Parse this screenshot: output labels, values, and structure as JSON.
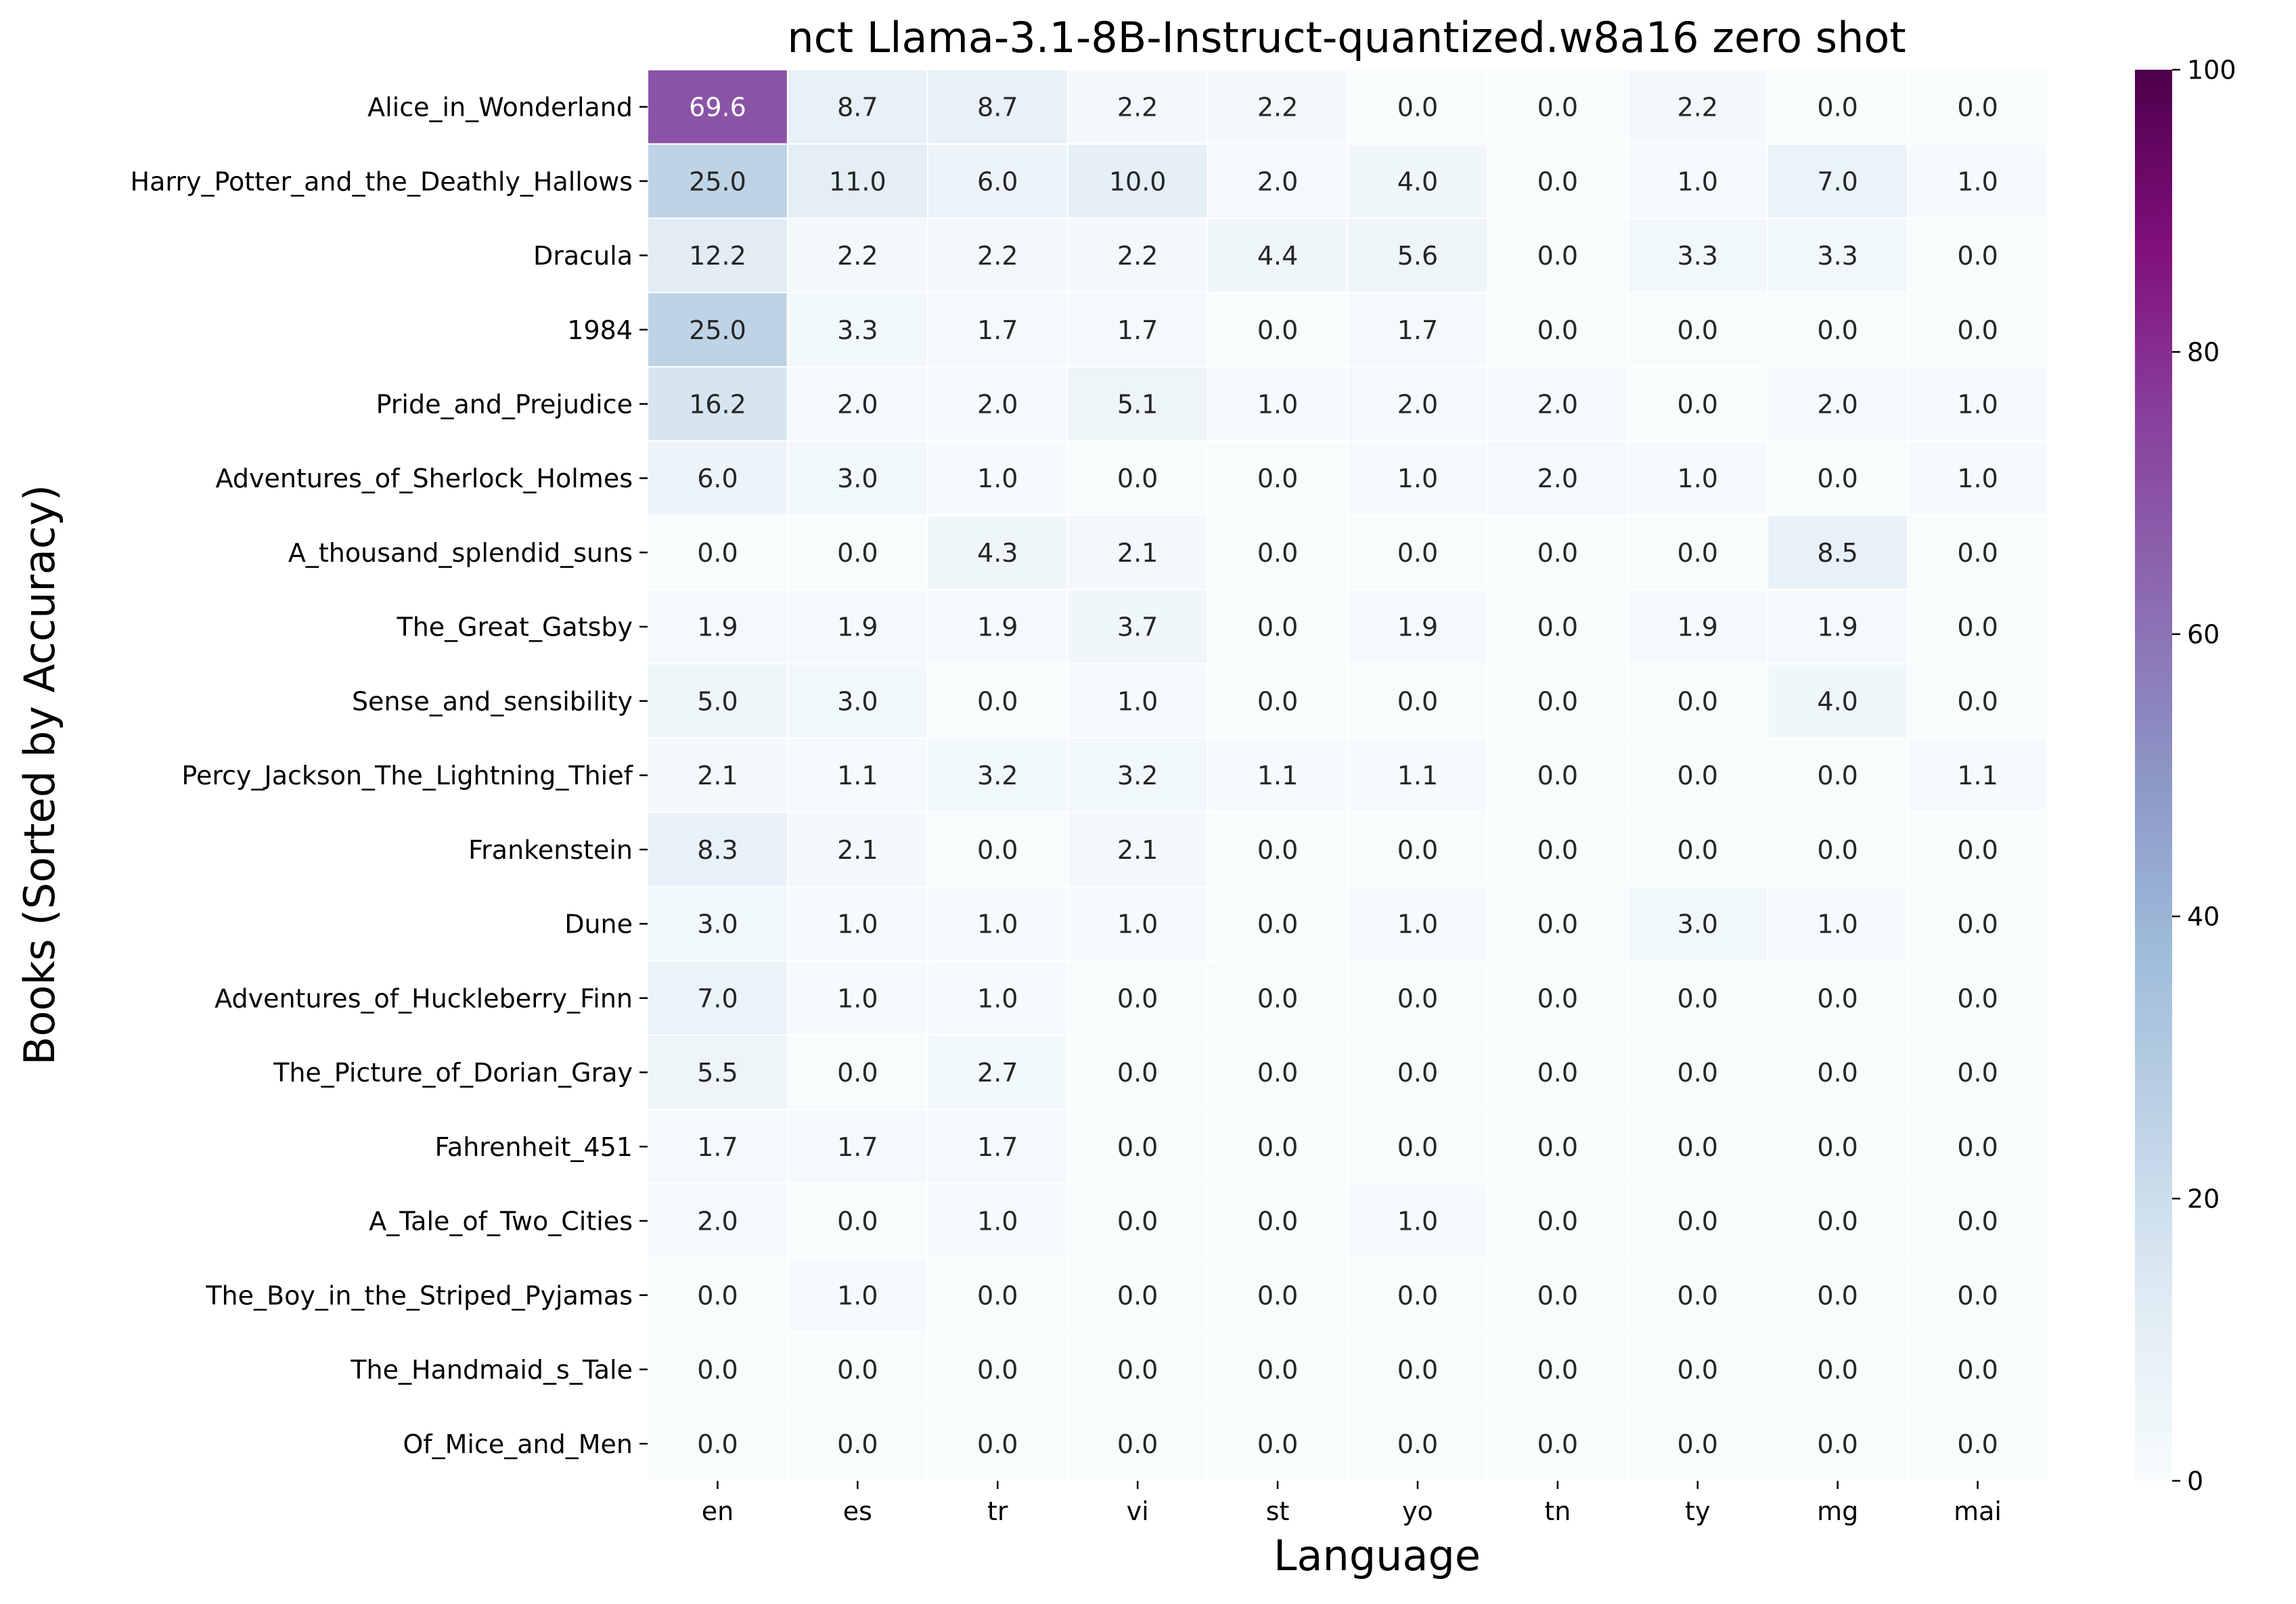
{
  "chart_data": {
    "type": "heatmap",
    "title": "nct Llama-3.1-8B-Instruct-quantized.w8a16 zero shot",
    "xlabel": "Language",
    "ylabel": "Books (Sorted by Accuracy)",
    "columns": [
      "en",
      "es",
      "tr",
      "vi",
      "st",
      "yo",
      "tn",
      "ty",
      "mg",
      "mai"
    ],
    "rows": [
      "Alice_in_Wonderland",
      "Harry_Potter_and_the_Deathly_Hallows",
      "Dracula",
      "1984",
      "Pride_and_Prejudice",
      "Adventures_of_Sherlock_Holmes",
      "A_thousand_splendid_suns",
      "The_Great_Gatsby",
      "Sense_and_sensibility",
      "Percy_Jackson_The_Lightning_Thief",
      "Frankenstein",
      "Dune",
      "Adventures_of_Huckleberry_Finn",
      "The_Picture_of_Dorian_Gray",
      "Fahrenheit_451",
      "A_Tale_of_Two_Cities",
      "The_Boy_in_the_Striped_Pyjamas",
      "The_Handmaid_s_Tale",
      "Of_Mice_and_Men"
    ],
    "values": [
      [
        69.6,
        8.7,
        8.7,
        2.2,
        2.2,
        0.0,
        0.0,
        2.2,
        0.0,
        0.0
      ],
      [
        25.0,
        11.0,
        6.0,
        10.0,
        2.0,
        4.0,
        0.0,
        1.0,
        7.0,
        1.0
      ],
      [
        12.2,
        2.2,
        2.2,
        2.2,
        4.4,
        5.6,
        0.0,
        3.3,
        3.3,
        0.0
      ],
      [
        25.0,
        3.3,
        1.7,
        1.7,
        0.0,
        1.7,
        0.0,
        0.0,
        0.0,
        0.0
      ],
      [
        16.2,
        2.0,
        2.0,
        5.1,
        1.0,
        2.0,
        2.0,
        0.0,
        2.0,
        1.0
      ],
      [
        6.0,
        3.0,
        1.0,
        0.0,
        0.0,
        1.0,
        2.0,
        1.0,
        0.0,
        1.0
      ],
      [
        0.0,
        0.0,
        4.3,
        2.1,
        0.0,
        0.0,
        0.0,
        0.0,
        8.5,
        0.0
      ],
      [
        1.9,
        1.9,
        1.9,
        3.7,
        0.0,
        1.9,
        0.0,
        1.9,
        1.9,
        0.0
      ],
      [
        5.0,
        3.0,
        0.0,
        1.0,
        0.0,
        0.0,
        0.0,
        0.0,
        4.0,
        0.0
      ],
      [
        2.1,
        1.1,
        3.2,
        3.2,
        1.1,
        1.1,
        0.0,
        0.0,
        0.0,
        1.1
      ],
      [
        8.3,
        2.1,
        0.0,
        2.1,
        0.0,
        0.0,
        0.0,
        0.0,
        0.0,
        0.0
      ],
      [
        3.0,
        1.0,
        1.0,
        1.0,
        0.0,
        1.0,
        0.0,
        3.0,
        1.0,
        0.0
      ],
      [
        7.0,
        1.0,
        1.0,
        0.0,
        0.0,
        0.0,
        0.0,
        0.0,
        0.0,
        0.0
      ],
      [
        5.5,
        0.0,
        2.7,
        0.0,
        0.0,
        0.0,
        0.0,
        0.0,
        0.0,
        0.0
      ],
      [
        1.7,
        1.7,
        1.7,
        0.0,
        0.0,
        0.0,
        0.0,
        0.0,
        0.0,
        0.0
      ],
      [
        2.0,
        0.0,
        1.0,
        0.0,
        0.0,
        1.0,
        0.0,
        0.0,
        0.0,
        0.0
      ],
      [
        0.0,
        1.0,
        0.0,
        0.0,
        0.0,
        0.0,
        0.0,
        0.0,
        0.0,
        0.0
      ],
      [
        0.0,
        0.0,
        0.0,
        0.0,
        0.0,
        0.0,
        0.0,
        0.0,
        0.0,
        0.0
      ],
      [
        0.0,
        0.0,
        0.0,
        0.0,
        0.0,
        0.0,
        0.0,
        0.0,
        0.0,
        0.0
      ]
    ],
    "value_range": [
      0,
      100
    ],
    "colorbar_ticks": [
      0,
      20,
      40,
      60,
      80,
      100
    ],
    "colormap": "BuPu",
    "colormap_stops": [
      "#f7fcfd",
      "#e0ecf4",
      "#bfd3e6",
      "#9ebcda",
      "#8c96c6",
      "#8c6bb1",
      "#88419d",
      "#810f7c",
      "#4d004b"
    ],
    "cell_border_color": "#ffffff",
    "text_color_dark": "#262626",
    "text_color_light": "#ffffff",
    "grid": false
  }
}
